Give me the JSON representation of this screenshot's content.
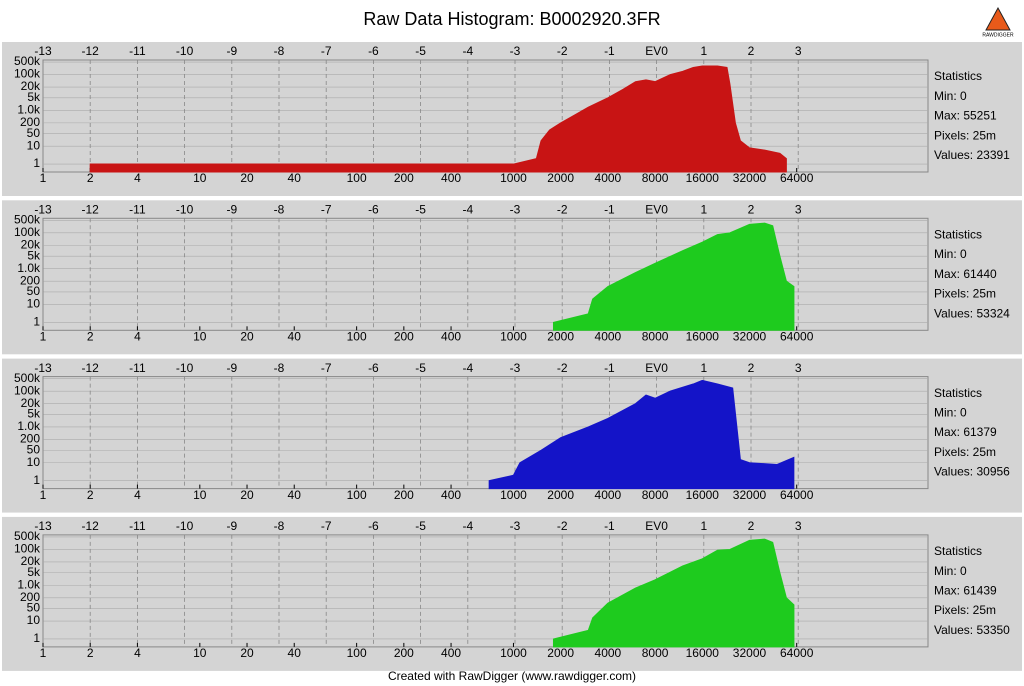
{
  "title": "Raw Data Histogram: B0002920.3FR",
  "footer": "Created with RawDigger (www.rawdigger.com)",
  "logo_text": "RAWDIGGER",
  "chart_data": [
    {
      "type": "area",
      "color": "#c81414",
      "xscale": "log",
      "yscale": "log",
      "grid": true,
      "xlim": [
        1,
        440000
      ],
      "xticks": [
        1,
        2,
        4,
        10,
        20,
        40,
        100,
        200,
        400,
        1000,
        2000,
        4000,
        8000,
        16000,
        32000,
        64000
      ],
      "x2lim": [
        -13,
        5.75
      ],
      "x2ticks": [
        -13,
        -12,
        -11,
        -10,
        -9,
        -8,
        -7,
        -6,
        -5,
        -4,
        -3,
        -2,
        -1,
        {
          "value": 0,
          "label": "EV0"
        },
        1,
        2,
        3
      ],
      "ylim": [
        0.36,
        650000
      ],
      "yticks": [
        {
          "value": 500000,
          "label": "500k"
        },
        {
          "value": 100000,
          "label": "100k"
        },
        {
          "value": 20000,
          "label": "20k"
        },
        {
          "value": 5000,
          "label": "5k"
        },
        {
          "value": 1000,
          "label": "1.0k"
        },
        200,
        50,
        10,
        1
      ],
      "x": [
        2,
        1000,
        1400,
        1500,
        1700,
        2000,
        2500,
        3000,
        4000,
        5000,
        6000,
        7000,
        8000,
        10000,
        12000,
        14000,
        16000,
        20000,
        23000,
        24000,
        26000,
        28000,
        32000,
        40000,
        50000,
        55000
      ],
      "values": [
        1,
        1,
        2,
        20,
        80,
        200,
        600,
        1500,
        5000,
        15000,
        40000,
        50000,
        40000,
        100000,
        150000,
        250000,
        300000,
        300000,
        250000,
        30000,
        200,
        20,
        8,
        6,
        4,
        2
      ],
      "stats": [
        "Statistics",
        "Min: 0",
        "Max: 55251",
        "Pixels: 25m",
        "Values: 23391"
      ]
    },
    {
      "type": "area",
      "color": "#1ecb1e",
      "xscale": "log",
      "yscale": "log",
      "grid": true,
      "xlim": [
        1,
        440000
      ],
      "xticks": [
        1,
        2,
        4,
        10,
        20,
        40,
        100,
        200,
        400,
        1000,
        2000,
        4000,
        8000,
        16000,
        32000,
        64000
      ],
      "x2lim": [
        -13,
        5.75
      ],
      "x2ticks": [
        -13,
        -12,
        -11,
        -10,
        -9,
        -8,
        -7,
        -6,
        -5,
        -4,
        -3,
        -2,
        -1,
        {
          "value": 0,
          "label": "EV0"
        },
        1,
        2,
        3
      ],
      "ylim": [
        0.36,
        650000
      ],
      "yticks": [
        {
          "value": 500000,
          "label": "500k"
        },
        {
          "value": 100000,
          "label": "100k"
        },
        {
          "value": 20000,
          "label": "20k"
        },
        {
          "value": 5000,
          "label": "5k"
        },
        {
          "value": 1000,
          "label": "1.0k"
        },
        200,
        50,
        10,
        1
      ],
      "x": [
        1800,
        3000,
        3200,
        4000,
        6000,
        8000,
        12000,
        16000,
        20000,
        24000,
        32000,
        40000,
        45000,
        50000,
        55000,
        61440
      ],
      "values": [
        1,
        3,
        20,
        100,
        600,
        2000,
        10000,
        30000,
        80000,
        100000,
        300000,
        350000,
        250000,
        5000,
        200,
        100
      ],
      "stats": [
        "Statistics",
        "Min: 0",
        "Max: 61440",
        "Pixels: 25m",
        "Values: 53324"
      ]
    },
    {
      "type": "area",
      "color": "#1414c8",
      "xscale": "log",
      "yscale": "log",
      "grid": true,
      "xlim": [
        1,
        440000
      ],
      "xticks": [
        1,
        2,
        4,
        10,
        20,
        40,
        100,
        200,
        400,
        1000,
        2000,
        4000,
        8000,
        16000,
        32000,
        64000
      ],
      "x2lim": [
        -13,
        5.75
      ],
      "x2ticks": [
        -13,
        -12,
        -11,
        -10,
        -9,
        -8,
        -7,
        -6,
        -5,
        -4,
        -3,
        -2,
        -1,
        {
          "value": 0,
          "label": "EV0"
        },
        1,
        2,
        3
      ],
      "ylim": [
        0.36,
        650000
      ],
      "yticks": [
        {
          "value": 500000,
          "label": "500k"
        },
        {
          "value": 100000,
          "label": "100k"
        },
        {
          "value": 20000,
          "label": "20k"
        },
        {
          "value": 5000,
          "label": "5k"
        },
        {
          "value": 1000,
          "label": "1.0k"
        },
        200,
        50,
        10,
        1
      ],
      "x": [
        700,
        1000,
        1100,
        1500,
        2000,
        3000,
        4000,
        6000,
        7000,
        8000,
        10000,
        14000,
        16000,
        20000,
        25000,
        28000,
        32000,
        48000,
        61379
      ],
      "values": [
        1,
        2,
        10,
        50,
        250,
        1000,
        3000,
        20000,
        60000,
        40000,
        100000,
        250000,
        400000,
        250000,
        150000,
        15,
        10,
        8,
        20
      ],
      "stats": [
        "Statistics",
        "Min: 0",
        "Max: 61379",
        "Pixels: 25m",
        "Values: 30956"
      ]
    },
    {
      "type": "area",
      "color": "#1ecb1e",
      "xscale": "log",
      "yscale": "log",
      "grid": true,
      "xlim": [
        1,
        440000
      ],
      "xticks": [
        1,
        2,
        4,
        10,
        20,
        40,
        100,
        200,
        400,
        1000,
        2000,
        4000,
        8000,
        16000,
        32000,
        64000
      ],
      "x2lim": [
        -13,
        5.75
      ],
      "x2ticks": [
        -13,
        -12,
        -11,
        -10,
        -9,
        -8,
        -7,
        -6,
        -5,
        -4,
        -3,
        -2,
        -1,
        {
          "value": 0,
          "label": "EV0"
        },
        1,
        2,
        3
      ],
      "ylim": [
        0.36,
        650000
      ],
      "yticks": [
        {
          "value": 500000,
          "label": "500k"
        },
        {
          "value": 100000,
          "label": "100k"
        },
        {
          "value": 20000,
          "label": "20k"
        },
        {
          "value": 5000,
          "label": "5k"
        },
        {
          "value": 1000,
          "label": "1.0k"
        },
        200,
        50,
        10,
        1
      ],
      "x": [
        1800,
        3000,
        3200,
        4000,
        6000,
        8000,
        12000,
        16000,
        20000,
        24000,
        32000,
        40000,
        45000,
        50000,
        55000,
        61439
      ],
      "values": [
        1,
        3,
        15,
        100,
        700,
        2000,
        12000,
        30000,
        90000,
        100000,
        320000,
        380000,
        250000,
        5000,
        200,
        80
      ],
      "stats": [
        "Statistics",
        "Min: 0",
        "Max: 61439",
        "Pixels: 25m",
        "Values: 53350"
      ]
    }
  ]
}
